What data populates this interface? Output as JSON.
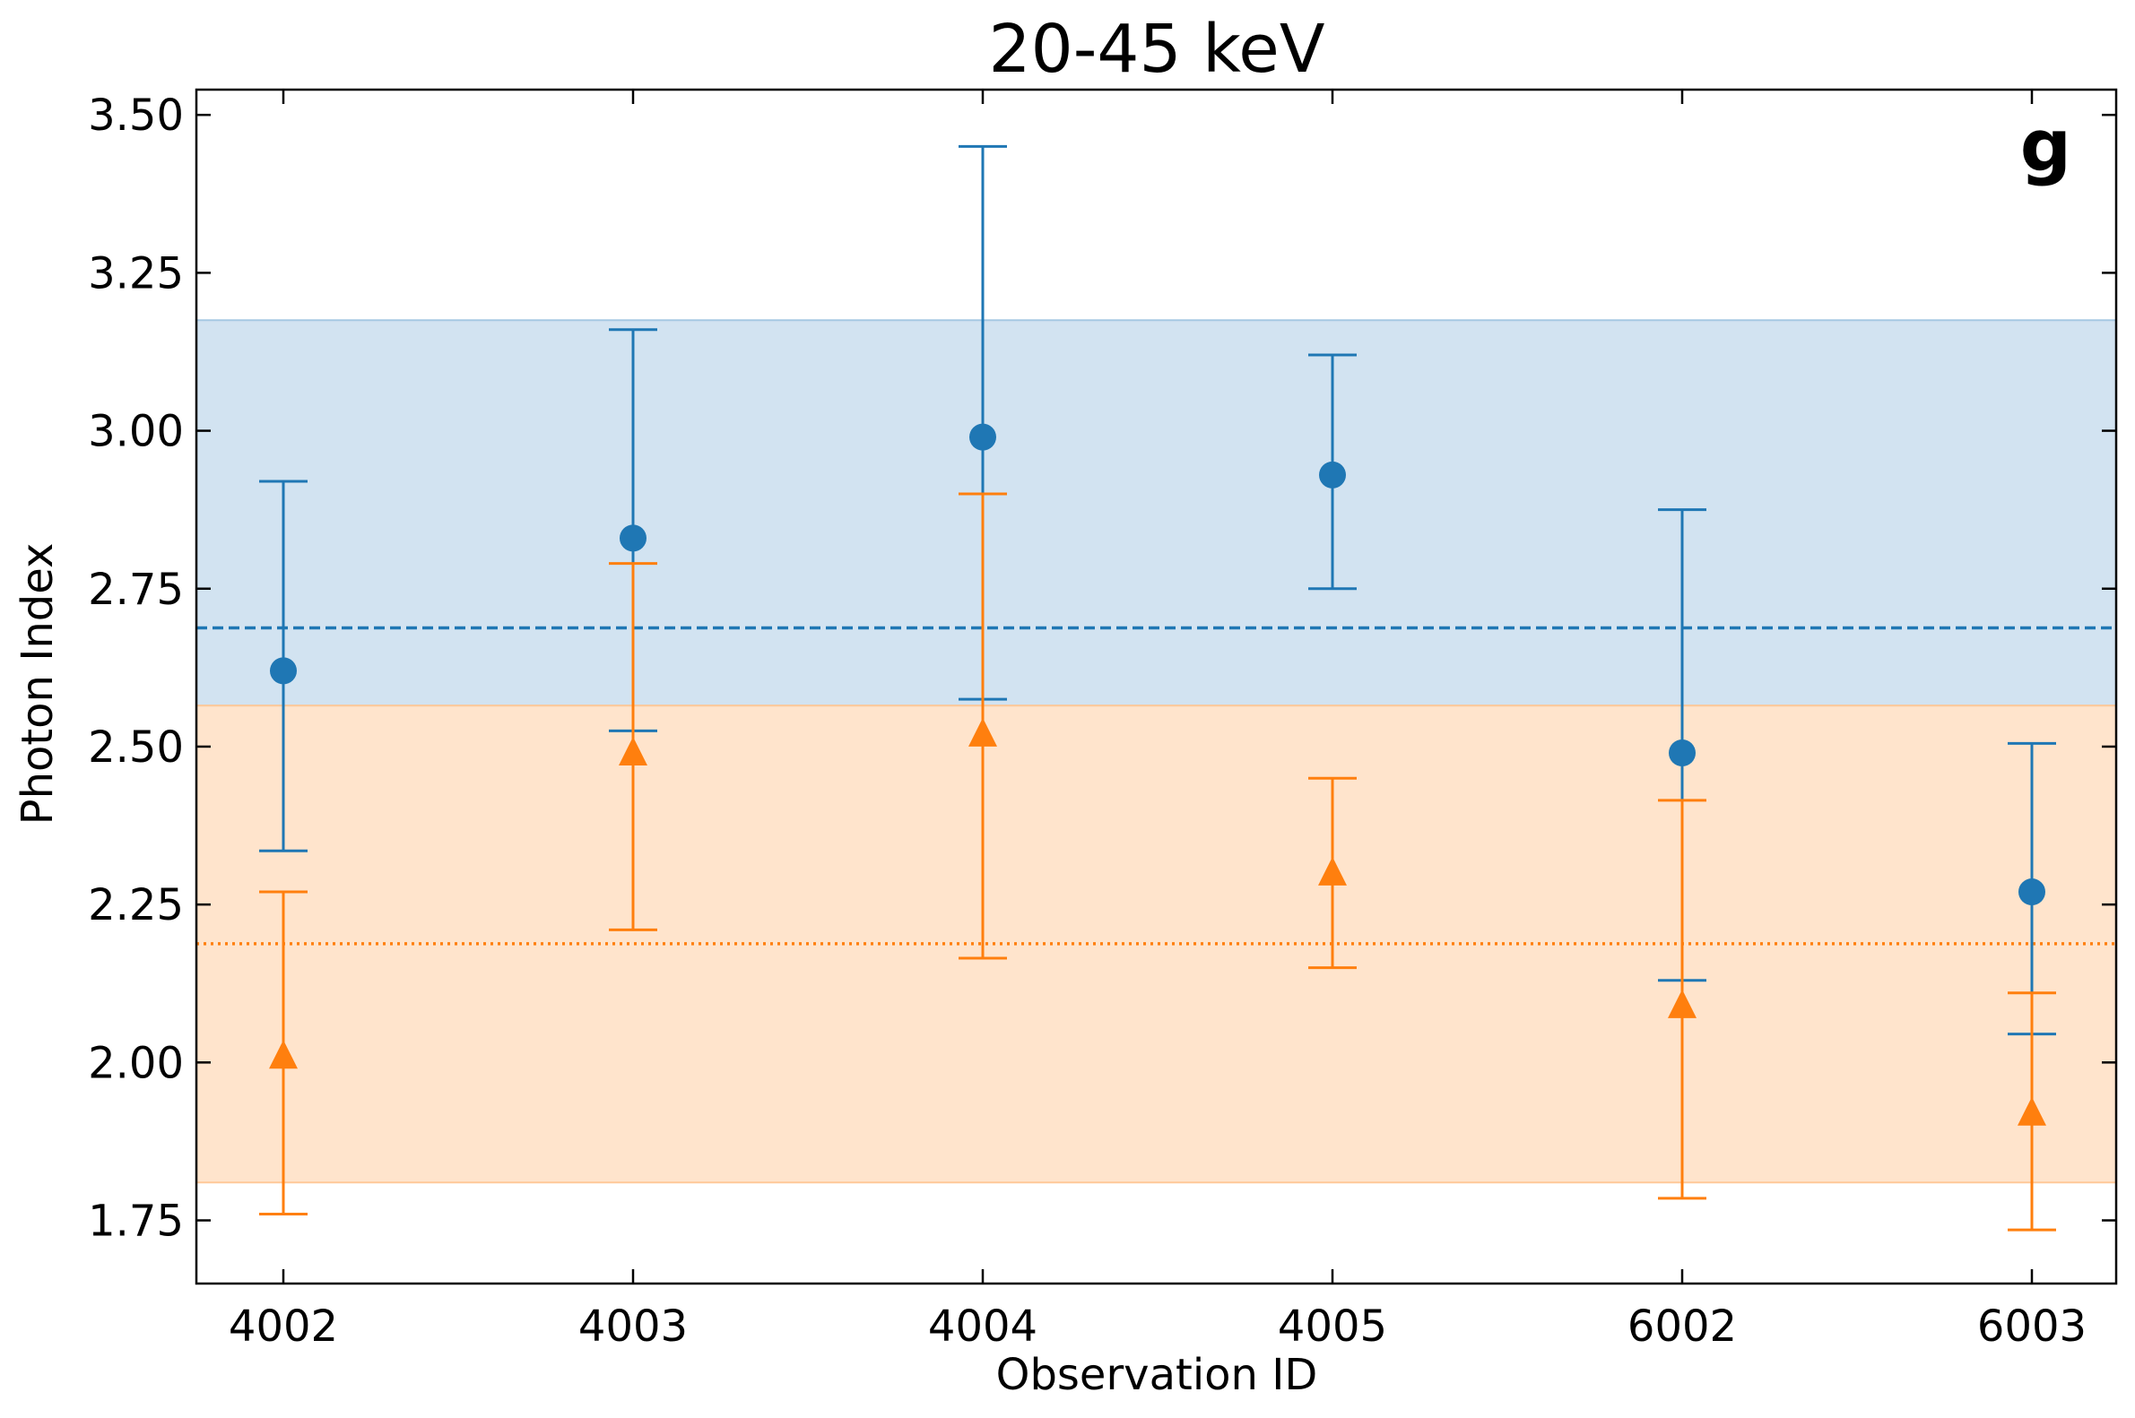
{
  "chart_data": {
    "type": "scatter",
    "title": "20-45 keV",
    "panel_label": "g",
    "xlabel": "Observation ID",
    "ylabel": "Photon Index",
    "categories": [
      "4002",
      "4003",
      "4004",
      "4005",
      "6002",
      "6003"
    ],
    "ylim": [
      1.65,
      3.54
    ],
    "yticks": [
      "1.75",
      "2.00",
      "2.25",
      "2.50",
      "2.75",
      "3.00",
      "3.25",
      "3.50"
    ],
    "grid": false,
    "series": [
      {
        "marker": "circle",
        "color": "#1f77b4",
        "values": [
          2.62,
          2.83,
          2.99,
          2.93,
          2.49,
          2.27
        ],
        "err_low": [
          2.335,
          2.525,
          2.575,
          2.75,
          2.13,
          2.045
        ],
        "err_high": [
          2.92,
          3.16,
          3.45,
          3.12,
          2.875,
          2.505
        ],
        "mean": 2.688,
        "band": [
          2.565,
          3.175
        ],
        "mean_linestyle": "dashed",
        "band_color": "#a6c8e3"
      },
      {
        "marker": "triangle",
        "color": "#ff7f0e",
        "values": [
          2.01,
          2.49,
          2.52,
          2.3,
          2.09,
          1.92
        ],
        "err_low": [
          1.76,
          2.21,
          2.165,
          2.15,
          1.785,
          1.735
        ],
        "err_high": [
          2.27,
          2.79,
          2.9,
          2.45,
          2.415,
          2.11
        ],
        "mean": 2.188,
        "band": [
          1.81,
          2.565
        ],
        "mean_linestyle": "dotted",
        "band_color": "#ffc999"
      }
    ]
  }
}
